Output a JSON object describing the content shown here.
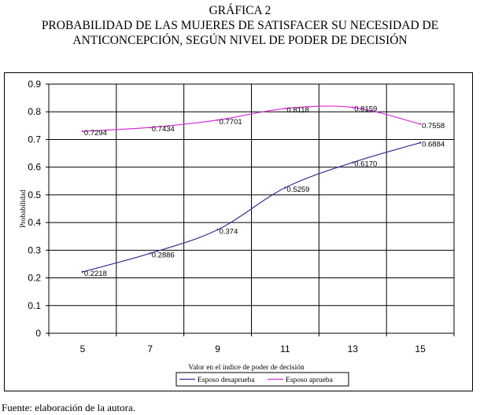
{
  "titles": {
    "line1": "GRÁFICA 2",
    "line2": "PROBABILIDAD DE LAS MUJERES DE SATISFACER SU NECESIDAD DE",
    "line3": "ANTICONCEPCIÓN, SEGÚN NIVEL DE PODER DE DECISIÓN"
  },
  "source": "Fuente: elaboración de la autora.",
  "chart_data": {
    "type": "line",
    "title": "PROBABILIDAD DE LAS MUJERES DE SATISFACER SU NECESIDAD DE ANTICONCEPCIÓN, SEGÚN NIVEL DE PODER DE DECISIÓN",
    "xlabel": "Valor en el índice de poder de decisión",
    "ylabel": "Probabilidad",
    "x": [
      5,
      7,
      9,
      11,
      13,
      15
    ],
    "x_ticks": [
      "5",
      "7",
      "9",
      "11",
      "13",
      "15"
    ],
    "y_ticks": [
      "0",
      "0.1",
      "0.2",
      "0.3",
      "0.4",
      "0.5",
      "0.6",
      "0.7",
      "0.8",
      "0.9"
    ],
    "ylim": [
      0,
      0.9
    ],
    "grid": true,
    "legend": "bottom",
    "series": [
      {
        "name": "Esposo desaprueba",
        "color": "#2e3192",
        "values": [
          0.2218,
          0.2886,
          0.374,
          0.5259,
          0.617,
          0.6884
        ],
        "labels": [
          "0.2218",
          "0.2886",
          "0.374",
          "0.5259",
          "0.6170",
          "0.6884"
        ]
      },
      {
        "name": "Esposo aprueba",
        "color": "#d633d6",
        "values": [
          0.7294,
          0.7434,
          0.7701,
          0.8118,
          0.8159,
          0.7558
        ],
        "labels": [
          "0.7294",
          "0.7434",
          "0.7701",
          "0.8118",
          "0.8159",
          "0.7558"
        ]
      }
    ]
  }
}
